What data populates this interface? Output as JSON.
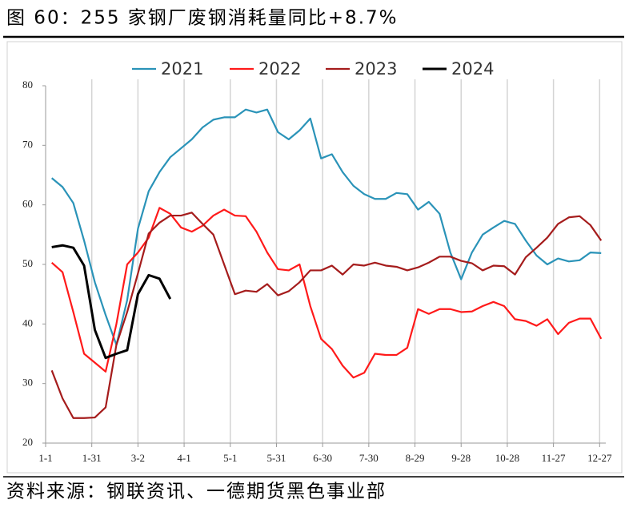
{
  "chart_data": {
    "type": "line",
    "title": "图 60：255 家钢厂废钢消耗量同比+8.7%",
    "source": "资料来源：钢联资讯、一德期货黑色事业部",
    "x": [
      4,
      11,
      18,
      25,
      32,
      39,
      46,
      53,
      60,
      67,
      74,
      81,
      88,
      95,
      102,
      109,
      116,
      123,
      130,
      137,
      144,
      151,
      158,
      165,
      172,
      179,
      186,
      193,
      200,
      207,
      214,
      221,
      228,
      235,
      242,
      249,
      256,
      263,
      270,
      277,
      284,
      291,
      298,
      305,
      312,
      319,
      326,
      333,
      340,
      347,
      354,
      361
    ],
    "xlim": [
      0,
      364
    ],
    "xticks": [
      {
        "value": 0,
        "label": "1-1"
      },
      {
        "value": 30,
        "label": "1-31"
      },
      {
        "value": 60,
        "label": "3-2"
      },
      {
        "value": 90,
        "label": "4-1"
      },
      {
        "value": 120,
        "label": "5-1"
      },
      {
        "value": 150,
        "label": "5-31"
      },
      {
        "value": 180,
        "label": "6-30"
      },
      {
        "value": 210,
        "label": "7-30"
      },
      {
        "value": 240,
        "label": "8-29"
      },
      {
        "value": 270,
        "label": "9-28"
      },
      {
        "value": 300,
        "label": "10-28"
      },
      {
        "value": 330,
        "label": "11-27"
      },
      {
        "value": 360,
        "label": "12-27"
      }
    ],
    "ylim": [
      20,
      80
    ],
    "yticks": [
      20,
      30,
      40,
      50,
      60,
      70,
      80
    ],
    "grid": "x",
    "series": [
      {
        "name": "2021",
        "color": "#2a93b8",
        "values": [
          64.5,
          63,
          60.3,
          54,
          47,
          41.5,
          36.5,
          44,
          56,
          62.3,
          65.5,
          68,
          69.5,
          71,
          73,
          74.3,
          74.7,
          74.7,
          76,
          75.5,
          76,
          72.2,
          71,
          72.5,
          74.5,
          67.8,
          68.5,
          65.5,
          63.2,
          61.8,
          61,
          61,
          62,
          61.8,
          59.2,
          60.5,
          58.5,
          52,
          47.5,
          52,
          55,
          56.2,
          57.3,
          56.8,
          54,
          51.5,
          50,
          51,
          50.5,
          50.7,
          52,
          51.9
        ]
      },
      {
        "name": "2022",
        "color": "#ff1a1a",
        "values": [
          50.3,
          48.7,
          42,
          35,
          33.5,
          32,
          40,
          50,
          52,
          54.5,
          59.5,
          58.5,
          56.2,
          55.5,
          56.5,
          58.2,
          59.2,
          58.2,
          58.1,
          55.5,
          52,
          49.2,
          49,
          50,
          43,
          37.5,
          35.8,
          33,
          31,
          31.8,
          35,
          34.8,
          34.8,
          36,
          42.5,
          41.7,
          42.5,
          42.5,
          42,
          42.1,
          43,
          43.7,
          43,
          40.8,
          40.5,
          39.7,
          40.8,
          38.3,
          40.2,
          40.9,
          40.9,
          37.5
        ]
      },
      {
        "name": "2023",
        "color": "#a51c1c",
        "values": [
          32.2,
          27.5,
          24.2,
          24.2,
          24.3,
          26,
          36.5,
          42,
          48.5,
          55.2,
          57,
          58.2,
          58.2,
          58.7,
          56.8,
          55,
          50,
          45,
          45.6,
          45.4,
          46.7,
          44.8,
          45.5,
          47,
          49,
          49,
          49.8,
          48.3,
          50,
          49.8,
          50.3,
          49.8,
          49.6,
          49,
          49.5,
          50.3,
          51.3,
          51.3,
          50.6,
          50.2,
          49,
          49.8,
          49.7,
          48.3,
          51.2,
          52.8,
          54.5,
          56.8,
          57.9,
          58.1,
          56.6,
          54
        ]
      },
      {
        "name": "2024",
        "color": "#000000",
        "values": [
          52.9,
          53.2,
          52.8,
          49.8,
          39,
          34.3,
          35,
          35.6,
          45,
          48.2,
          47.6,
          44.2,
          null,
          null,
          null,
          null,
          null,
          null,
          null,
          null,
          null,
          null,
          null,
          null,
          null,
          null,
          null,
          null,
          null,
          null,
          null,
          null,
          null,
          null,
          null,
          null,
          null,
          null,
          null,
          null,
          null,
          null,
          null,
          null,
          null,
          null,
          null,
          null,
          null,
          null,
          null,
          null
        ]
      }
    ]
  }
}
